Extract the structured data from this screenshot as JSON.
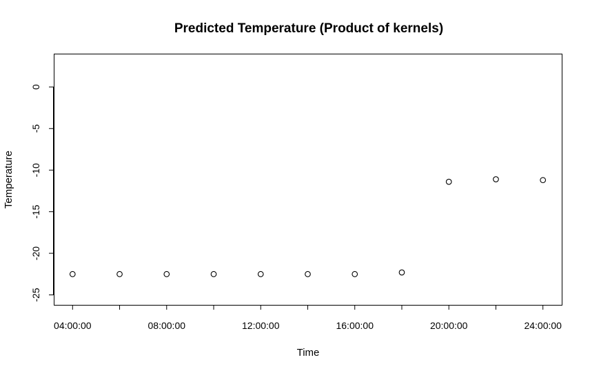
{
  "chart_data": {
    "type": "scatter",
    "title": "Predicted Temperature (Product of kernels)",
    "xlabel": "Time",
    "ylabel": "Temperature",
    "x": [
      "04:00:00",
      "06:00:00",
      "08:00:00",
      "10:00:00",
      "12:00:00",
      "14:00:00",
      "16:00:00",
      "18:00:00",
      "20:00:00",
      "22:00:00",
      "24:00:00"
    ],
    "x_hours": [
      4,
      6,
      8,
      10,
      12,
      14,
      16,
      18,
      20,
      22,
      24
    ],
    "x_tick_labels": [
      "04:00:00",
      "08:00:00",
      "12:00:00",
      "16:00:00",
      "20:00:00",
      "24:00:00"
    ],
    "y": [
      -22.5,
      -22.5,
      -22.5,
      -22.5,
      -22.5,
      -22.5,
      -22.5,
      -22.3,
      -11.4,
      -11.1,
      -11.2
    ],
    "y_ticks": [
      0,
      -5,
      -10,
      -15,
      -20,
      -25
    ],
    "xlim": [
      3.2,
      24.8
    ],
    "ylim": [
      -26.2,
      4
    ],
    "grid": false,
    "legend": "none"
  }
}
